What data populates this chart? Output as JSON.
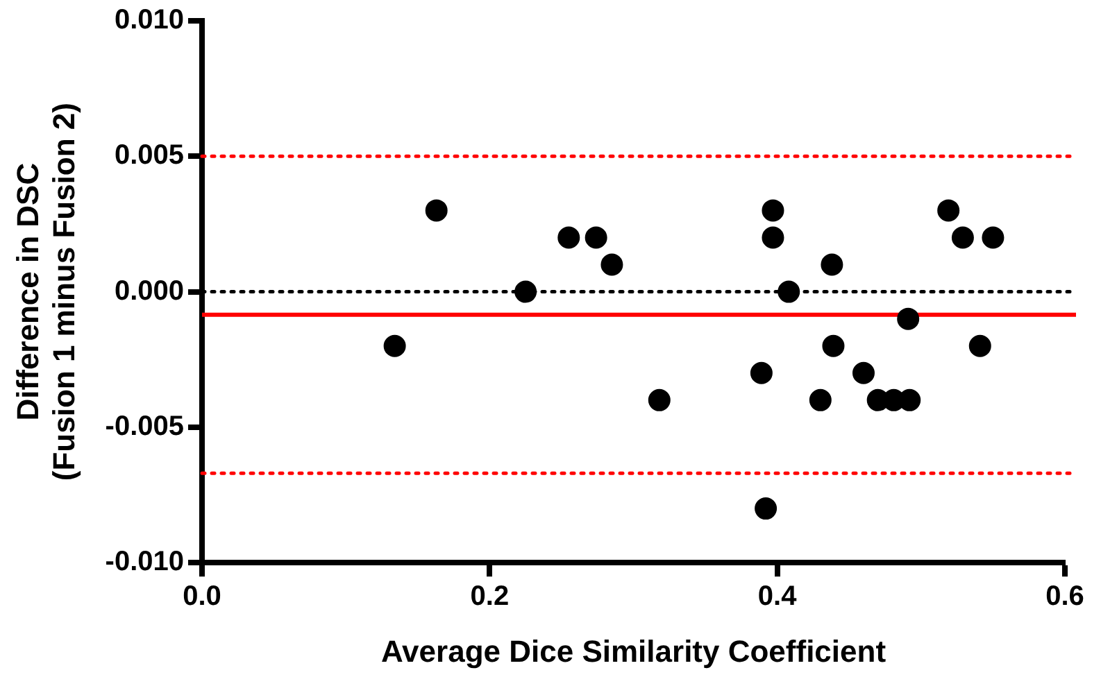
{
  "chart_data": {
    "type": "scatter",
    "xlabel": "Average Dice Similarity Coefficient",
    "ylabel": "Difference in DSC\n(Fusion 1 minus Fusion 2)",
    "x": [
      0.134,
      0.163,
      0.225,
      0.255,
      0.274,
      0.285,
      0.318,
      0.389,
      0.392,
      0.397,
      0.397,
      0.408,
      0.43,
      0.438,
      0.439,
      0.46,
      0.47,
      0.481,
      0.491,
      0.492,
      0.519,
      0.529,
      0.55,
      0.541
    ],
    "values": [
      -0.002,
      0.003,
      0,
      0.002,
      0.002,
      0.001,
      -0.004,
      -0.003,
      -0.008,
      0.003,
      0.002,
      0,
      -0.004,
      0.001,
      -0.002,
      -0.003,
      -0.004,
      -0.004,
      -0.001,
      -0.004,
      0.003,
      0.002,
      0.002,
      -0.002
    ],
    "color": "#000000",
    "marker": "circle",
    "xlim": [
      0,
      0.6
    ],
    "xticks": [
      {
        "value": 0,
        "label": "0.0"
      },
      0.2,
      0.4,
      0.6
    ],
    "ylim": [
      -0.01,
      0.01
    ],
    "yticks": [
      {
        "value": -0.01,
        "label": "-0.010"
      },
      {
        "value": -0.005,
        "label": "-0.005"
      },
      {
        "value": 0,
        "label": "0.000"
      },
      {
        "value": 0.005,
        "label": "0.005"
      },
      {
        "value": 0.01,
        "label": "0.010"
      }
    ],
    "ref_lines": [
      {
        "axis": "y",
        "value": 0.005,
        "color": "#ff0000",
        "line_style": "dotted"
      },
      {
        "axis": "y",
        "value": 0,
        "color": "#000000",
        "line_style": "dotted"
      },
      {
        "axis": "y",
        "value": -0.00085,
        "color": "#ff0000",
        "line_style": "solid"
      },
      {
        "axis": "y",
        "value": -0.0067,
        "color": "#ff0000",
        "line_style": "dotted"
      }
    ],
    "grid": false,
    "legend": false
  }
}
